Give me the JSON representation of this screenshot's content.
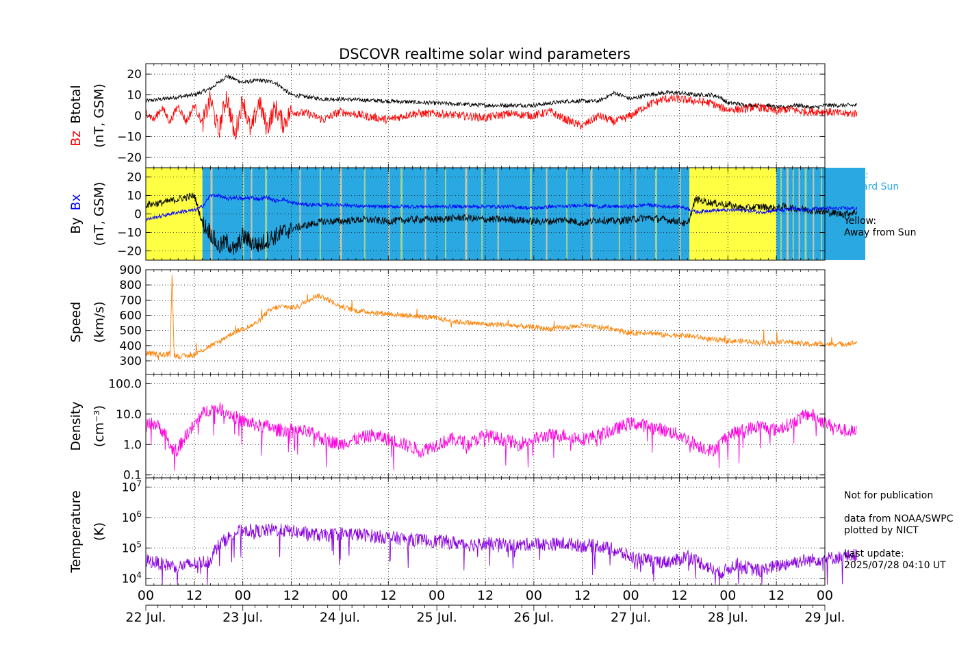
{
  "title": "DSCOVR realtime solar wind parameters",
  "colors": {
    "btotal": "#000000",
    "bz": "#ff0000",
    "by": "#000000",
    "bx": "#0000ff",
    "speed": "#ff8000",
    "density": "#ff00dd",
    "temperature": "#8800dd",
    "toward_sun": "#2aa8e2",
    "away_sun": "#ffff44",
    "uncertain": "#c8c8a8"
  },
  "legend": {
    "blue_line1": "Blue:",
    "blue_line2": "Toward Sun",
    "yellow_line1": "Yellow:",
    "yellow_line2": "Away from Sun"
  },
  "footer": {
    "notice": "Not for publication",
    "source1": "data from NOAA/SWPC",
    "source2": "plotted by NICT",
    "update_label": "Last update:",
    "update_value": "2025/07/28 04:10 UT"
  },
  "chart_data": [
    {
      "type": "line",
      "ylabel_parts": [
        "Bz",
        "Btotal",
        "(nT, GSM)"
      ],
      "ylim": [
        -25,
        25
      ],
      "yticks": [
        "20",
        "10",
        "0",
        "−10",
        "−20"
      ],
      "ytick_values": [
        20,
        10,
        0,
        -10,
        -20
      ],
      "grid": true,
      "x_unit": "hours since 22 Jul. 00 UT",
      "series": [
        {
          "name": "Btotal",
          "x": [
            0,
            4,
            8,
            12,
            16,
            20,
            24,
            28,
            32,
            36,
            40,
            44,
            48,
            60,
            72,
            84,
            96,
            100,
            104,
            108,
            112,
            116,
            120,
            124,
            128,
            132,
            136,
            140,
            142,
            144,
            146,
            148,
            150,
            152,
            154,
            156,
            158,
            160,
            162,
            164,
            166,
            168,
            172,
            176
          ],
          "y": [
            7,
            8,
            9,
            10,
            13,
            19,
            16,
            17,
            16,
            10,
            9,
            8,
            8,
            7,
            6,
            5,
            5,
            6,
            7,
            7,
            7,
            11,
            8,
            10,
            11,
            11,
            10,
            10,
            9,
            6,
            6,
            5,
            5,
            5,
            5,
            4,
            4,
            5,
            5,
            4,
            4,
            5,
            5,
            5
          ]
        },
        {
          "name": "Bz",
          "x": [
            0,
            2,
            4,
            6,
            8,
            10,
            12,
            14,
            16,
            18,
            20,
            22,
            24,
            26,
            28,
            30,
            32,
            34,
            36,
            40,
            44,
            48,
            54,
            60,
            66,
            72,
            78,
            84,
            90,
            96,
            100,
            104,
            108,
            112,
            116,
            120,
            124,
            128,
            132,
            136,
            140,
            142,
            144,
            146,
            148,
            150,
            152,
            154,
            156,
            158,
            160,
            162,
            164,
            166,
            168,
            172,
            176
          ],
          "y": [
            2,
            -2,
            4,
            -3,
            5,
            -3,
            5,
            -4,
            8,
            -8,
            10,
            -10,
            8,
            -8,
            7,
            -6,
            4,
            -4,
            2,
            1,
            -2,
            2,
            0,
            -2,
            1,
            1,
            0,
            -1,
            1,
            0,
            2,
            -2,
            -5,
            0,
            -3,
            0,
            5,
            8,
            8,
            7,
            6,
            4,
            3,
            3,
            3,
            4,
            4,
            3,
            2,
            3,
            3,
            2,
            2,
            2,
            2,
            1,
            1
          ]
        }
      ]
    },
    {
      "type": "line",
      "ylabel_parts": [
        "By",
        "Bx",
        "(nT, GSM)"
      ],
      "ylim": [
        -25,
        25
      ],
      "yticks": [
        "20",
        "10",
        "0",
        "−10",
        "−20"
      ],
      "ytick_values": [
        20,
        10,
        0,
        -10,
        -20
      ],
      "grid": true,
      "x_unit": "hours since 22 Jul. 00 UT",
      "sectors": [
        {
          "from": 0,
          "to": 14,
          "polarity": "away"
        },
        {
          "from": 14,
          "to": 134.5,
          "polarity": "toward"
        },
        {
          "from": 134.5,
          "to": 156,
          "polarity": "away"
        },
        {
          "from": 156,
          "to": 178,
          "polarity": "toward"
        }
      ],
      "series": [
        {
          "name": "By",
          "x": [
            0,
            4,
            8,
            12,
            14,
            16,
            18,
            20,
            22,
            24,
            26,
            28,
            30,
            32,
            34,
            36,
            40,
            44,
            48,
            54,
            60,
            66,
            72,
            78,
            84,
            90,
            96,
            100,
            104,
            108,
            112,
            116,
            120,
            124,
            128,
            132,
            134,
            136,
            140,
            144,
            148,
            152,
            156,
            158,
            160,
            162,
            164,
            166,
            168,
            172,
            176
          ],
          "y": [
            5,
            6,
            8,
            10,
            -5,
            -10,
            -18,
            -15,
            -20,
            -12,
            -15,
            -17,
            -14,
            -12,
            -10,
            -8,
            -6,
            -4,
            -4,
            -3,
            -4,
            -3,
            -3,
            -2,
            -3,
            -3,
            -4,
            -4,
            -3,
            -5,
            -3,
            -4,
            -3,
            -2,
            -3,
            -4,
            -6,
            8,
            6,
            5,
            3,
            4,
            3,
            4,
            3,
            3,
            2,
            2,
            1,
            0,
            1
          ]
        },
        {
          "name": "Bx",
          "x": [
            0,
            4,
            8,
            12,
            14,
            16,
            18,
            20,
            22,
            24,
            26,
            28,
            30,
            32,
            34,
            36,
            40,
            44,
            48,
            54,
            60,
            66,
            72,
            78,
            84,
            90,
            96,
            100,
            104,
            108,
            112,
            116,
            120,
            124,
            128,
            132,
            134,
            136,
            140,
            144,
            148,
            152,
            156,
            158,
            160,
            162,
            164,
            166,
            168,
            172,
            176
          ],
          "y": [
            -3,
            -1,
            1,
            2,
            4,
            10,
            10,
            8,
            9,
            8,
            9,
            8,
            9,
            7,
            8,
            6,
            5,
            5,
            5,
            4,
            4,
            4,
            4,
            4,
            4,
            4,
            3,
            4,
            4,
            5,
            4,
            4,
            4,
            5,
            4,
            4,
            3,
            1,
            2,
            2,
            2,
            1,
            2,
            2,
            3,
            2,
            2,
            3,
            3,
            3,
            3
          ]
        }
      ]
    },
    {
      "type": "line",
      "ylabel_parts": [
        "Speed",
        "(km/s)"
      ],
      "ylim": [
        210,
        900
      ],
      "yticks": [
        "900",
        "800",
        "700",
        "600",
        "500",
        "400",
        "300"
      ],
      "ytick_values": [
        900,
        800,
        700,
        600,
        500,
        400,
        300
      ],
      "grid": true,
      "x_unit": "hours since 22 Jul. 00 UT",
      "series": [
        {
          "name": "Speed",
          "x": [
            0,
            4,
            6,
            6.5,
            7,
            8,
            10,
            12,
            14,
            16,
            18,
            20,
            22,
            24,
            26,
            28,
            30,
            32,
            34,
            36,
            38,
            40,
            42,
            44,
            48,
            52,
            56,
            60,
            64,
            68,
            72,
            76,
            80,
            84,
            88,
            92,
            96,
            100,
            104,
            108,
            112,
            116,
            120,
            124,
            128,
            132,
            136,
            140,
            144,
            148,
            152,
            156,
            158,
            160,
            164,
            168,
            172,
            176
          ],
          "y": [
            350,
            340,
            345,
            880,
            340,
            330,
            330,
            340,
            370,
            400,
            420,
            460,
            490,
            510,
            530,
            560,
            620,
            650,
            660,
            650,
            660,
            700,
            730,
            720,
            660,
            630,
            620,
            610,
            600,
            590,
            580,
            560,
            550,
            540,
            540,
            530,
            520,
            510,
            520,
            530,
            520,
            510,
            480,
            490,
            470,
            470,
            460,
            440,
            430,
            430,
            420,
            420,
            430,
            420,
            410,
            410,
            410,
            420
          ]
        }
      ]
    },
    {
      "type": "line",
      "ylabel_parts": [
        "Density",
        "(cm⁻³)"
      ],
      "yscale": "log",
      "ylim": [
        0.08,
        200
      ],
      "yticks": [
        "100.0",
        "10.0",
        "1.0",
        "0.1"
      ],
      "ytick_values": [
        100,
        10,
        1,
        0.1
      ],
      "grid": true,
      "x_unit": "hours since 22 Jul. 00 UT",
      "series": [
        {
          "name": "Density",
          "x": [
            0,
            2,
            4,
            6,
            8,
            10,
            12,
            14,
            16,
            18,
            20,
            22,
            24,
            26,
            28,
            30,
            32,
            36,
            40,
            44,
            48,
            52,
            56,
            60,
            64,
            68,
            72,
            76,
            80,
            84,
            88,
            92,
            96,
            100,
            104,
            108,
            112,
            116,
            120,
            124,
            128,
            132,
            136,
            138,
            140,
            142,
            144,
            148,
            152,
            156,
            160,
            164,
            168,
            172,
            176
          ],
          "y": [
            4,
            5,
            3,
            0.8,
            0.6,
            2,
            4,
            10,
            15,
            15,
            12,
            8,
            6,
            5,
            4,
            4,
            3,
            3,
            2.5,
            1.5,
            1,
            1.5,
            2,
            1.5,
            1,
            0.6,
            1,
            1.5,
            1,
            2,
            1.5,
            1,
            1.5,
            2,
            2,
            1.5,
            2,
            3,
            5,
            4,
            3,
            2,
            1,
            0.8,
            0.6,
            1,
            2,
            3,
            4,
            3,
            5,
            10,
            5,
            3,
            2.5
          ]
        }
      ]
    },
    {
      "type": "line",
      "ylabel_parts": [
        "Temperature",
        "(K)"
      ],
      "yscale": "log",
      "ylim": [
        6000,
        20000000
      ],
      "yticks": [
        "10^7",
        "10^6",
        "10^5",
        "10^4"
      ],
      "ytick_values": [
        10000000,
        1000000,
        100000,
        10000
      ],
      "grid": true,
      "x_unit": "hours since 22 Jul. 00 UT",
      "series": [
        {
          "name": "Temperature",
          "x": [
            0,
            4,
            8,
            12,
            16,
            20,
            24,
            28,
            32,
            36,
            40,
            44,
            48,
            52,
            56,
            60,
            64,
            68,
            72,
            76,
            80,
            84,
            88,
            92,
            96,
            100,
            104,
            108,
            112,
            116,
            120,
            124,
            128,
            132,
            134,
            136,
            138,
            140,
            142,
            144,
            146,
            148,
            150,
            152,
            154,
            156,
            158,
            160,
            164,
            168,
            172,
            176
          ],
          "y": [
            40000,
            30000,
            25000,
            30000,
            40000,
            200000,
            400000,
            350000,
            400000,
            350000,
            300000,
            250000,
            300000,
            280000,
            250000,
            220000,
            200000,
            180000,
            170000,
            150000,
            130000,
            140000,
            130000,
            120000,
            140000,
            130000,
            140000,
            120000,
            120000,
            80000,
            50000,
            40000,
            35000,
            40000,
            60000,
            40000,
            30000,
            20000,
            15000,
            20000,
            30000,
            25000,
            20000,
            18000,
            22000,
            25000,
            30000,
            35000,
            40000,
            45000,
            50000,
            60000
          ]
        }
      ]
    }
  ],
  "x_axis": {
    "hour_labels": [
      "00",
      "12",
      "00",
      "12",
      "00",
      "12",
      "00",
      "12",
      "00",
      "12",
      "00",
      "12",
      "00",
      "12",
      "00"
    ],
    "day_labels": [
      "22 Jul.",
      "23 Jul.",
      "24 Jul.",
      "25 Jul.",
      "26 Jul.",
      "27 Jul.",
      "28 Jul.",
      "29 Jul."
    ],
    "range_hours": [
      0,
      168
    ]
  }
}
